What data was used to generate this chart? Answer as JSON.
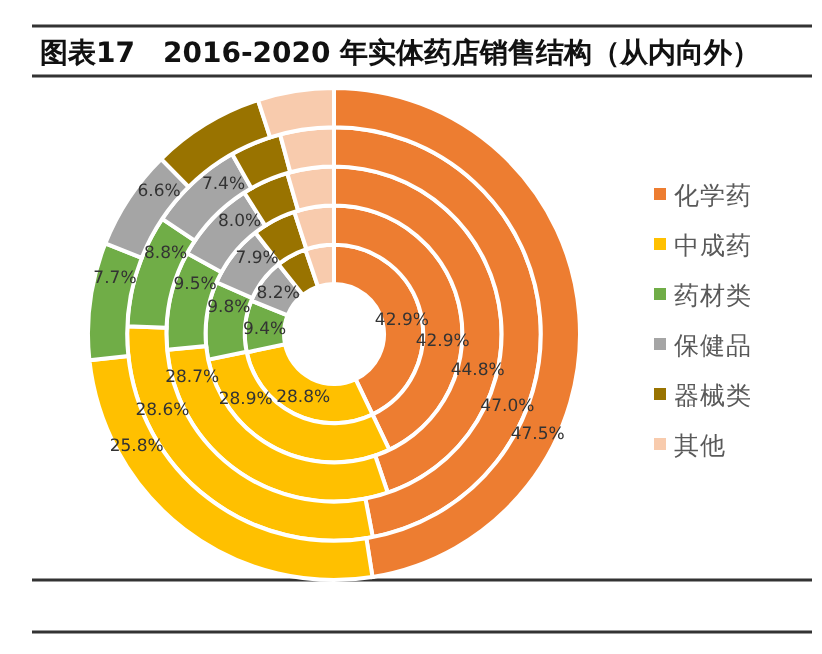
{
  "chart_data": {
    "type": "donut",
    "title": "图表17　2016-2020 年实体药店销售结构（从内向外）",
    "categories": [
      "化学药",
      "中成药",
      "药材类",
      "保健品",
      "器械类",
      "其他"
    ],
    "colors": [
      "#ed7d31",
      "#ffc000",
      "#70ad47",
      "#a5a5a5",
      "#997300",
      "#f8cbad"
    ],
    "legend": "right",
    "series": [
      {
        "values": [
          42.9,
          28.8,
          9.4,
          8.2,
          5.5,
          5.2
        ],
        "value_labels": [
          "42.9%",
          "28.8%",
          "9.4%",
          "8.2%",
          null,
          null
        ]
      },
      {
        "values": [
          42.9,
          28.9,
          9.8,
          7.9,
          5.5,
          5.0
        ],
        "value_labels": [
          "42.9%",
          "28.9%",
          "9.8%",
          "7.9%",
          null,
          null
        ]
      },
      {
        "values": [
          44.8,
          28.7,
          9.5,
          8.0,
          4.5,
          4.5
        ],
        "value_labels": [
          "44.8%",
          "28.7%",
          "9.5%",
          "8.0%",
          null,
          null
        ]
      },
      {
        "values": [
          47.0,
          28.6,
          8.8,
          7.4,
          4.0,
          4.2
        ],
        "value_labels": [
          "47.0%",
          "28.6%",
          "8.8%",
          "7.4%",
          null,
          null
        ]
      },
      {
        "values": [
          47.5,
          25.8,
          7.7,
          6.6,
          7.4,
          5.0
        ],
        "value_labels": [
          "47.5%",
          "25.8%",
          "7.7%",
          "6.6%",
          null,
          null
        ]
      }
    ]
  }
}
